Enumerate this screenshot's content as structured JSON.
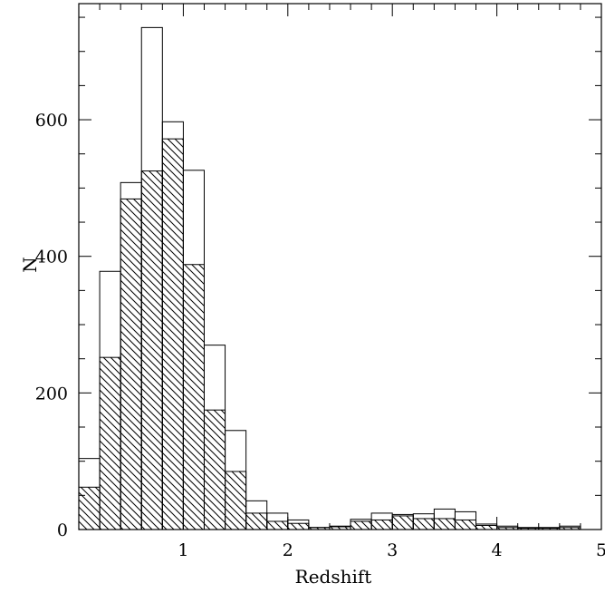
{
  "chart_data": {
    "type": "bar",
    "subtype": "histogram-step-overlay",
    "title": "",
    "xlabel": "Redshift",
    "ylabel": "N",
    "xlim": [
      0,
      5
    ],
    "ylim": [
      0,
      770
    ],
    "x_ticks": [
      "1",
      "2",
      "3",
      "4",
      "5"
    ],
    "y_ticks": [
      "0",
      "200",
      "400",
      "600"
    ],
    "bin_edges": [
      0.0,
      0.2,
      0.4,
      0.6,
      0.8,
      1.0,
      1.2,
      1.4,
      1.6,
      1.8,
      2.0,
      2.2,
      2.4,
      2.6,
      2.8,
      3.0,
      3.2,
      3.4,
      3.6,
      3.8,
      4.0,
      4.2,
      4.4,
      4.6,
      4.8
    ],
    "grid": false,
    "legend": "none",
    "series": [
      {
        "style": "open outline",
        "values": [
          104,
          378,
          508,
          735,
          597,
          526,
          270,
          145,
          42,
          24,
          14,
          3,
          5,
          15,
          24,
          22,
          23,
          30,
          26,
          8,
          5,
          3,
          3,
          5
        ]
      },
      {
        "style": "hatched",
        "values": [
          62,
          252,
          484,
          525,
          572,
          388,
          175,
          85,
          24,
          12,
          9,
          3,
          4,
          12,
          14,
          20,
          16,
          16,
          14,
          6,
          3,
          2,
          2,
          3
        ]
      }
    ]
  }
}
